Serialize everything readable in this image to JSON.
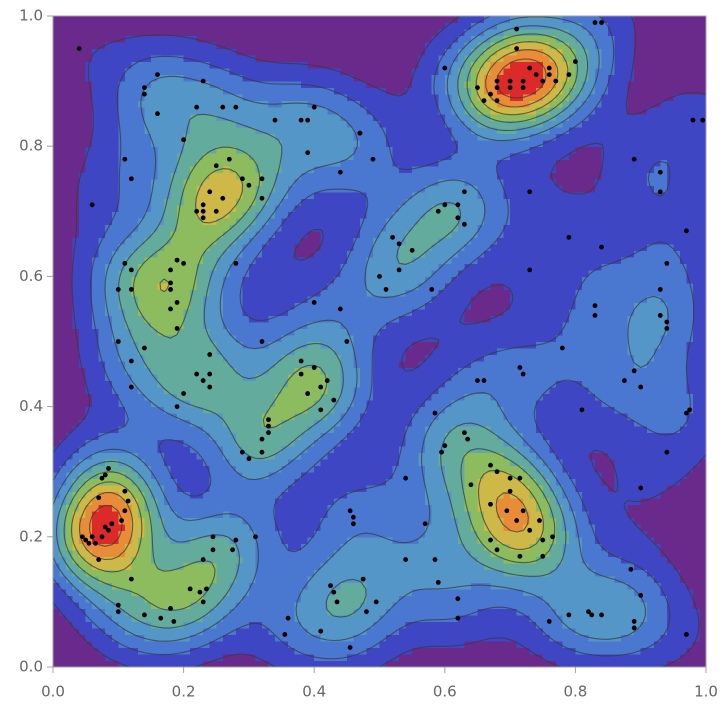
{
  "chart_data": {
    "type": "density",
    "xlim": [
      0,
      1
    ],
    "ylim": [
      0,
      1
    ],
    "xticks": [
      {
        "value": 0,
        "label": "0.0"
      },
      {
        "value": 0.2,
        "label": "0.2"
      },
      {
        "value": 0.4,
        "label": "0.4"
      },
      {
        "value": 0.6,
        "label": "0.6"
      },
      {
        "value": 0.8,
        "label": "0.8"
      },
      {
        "value": 1,
        "label": "1.0"
      }
    ],
    "yticks": [
      {
        "value": 0,
        "label": "0.0"
      },
      {
        "value": 0.2,
        "label": "0.2"
      },
      {
        "value": 0.4,
        "label": "0.4"
      },
      {
        "value": 0.6,
        "label": "0.6"
      },
      {
        "value": 0.8,
        "label": "0.8"
      },
      {
        "value": 1,
        "label": "1.0"
      }
    ],
    "colors": [
      "#6a2a8c",
      "#3f46c4",
      "#4a78d0",
      "#5596c8",
      "#63ab9c",
      "#8cbc5e",
      "#cdb848",
      "#e88c38",
      "#dc2a2a"
    ],
    "point_color": "#000000",
    "x": [
      0.04,
      0.06,
      0.11,
      0.12,
      0.14,
      0.14,
      0.16,
      0.16,
      0.23,
      0.1,
      0.11,
      0.12,
      0.12,
      0.1,
      0.12,
      0.14,
      0.12,
      0.18,
      0.18,
      0.18,
      0.18,
      0.19,
      0.19,
      0.19,
      0.2,
      0.2,
      0.22,
      0.26,
      0.28,
      0.34,
      0.38,
      0.39,
      0.4,
      0.39,
      0.27,
      0.25,
      0.29,
      0.3,
      0.32,
      0.32,
      0.26,
      0.25,
      0.23,
      0.23,
      0.24,
      0.22,
      0.23,
      0.28,
      0.24,
      0.22,
      0.23,
      0.24,
      0.24,
      0.2,
      0.19,
      0.38,
      0.38,
      0.39,
      0.4,
      0.42,
      0.41,
      0.43,
      0.41,
      0.33,
      0.32,
      0.33,
      0.33,
      0.29,
      0.3,
      0.32,
      0.44,
      0.47,
      0.47,
      0.49,
      0.44,
      0.45,
      0.4,
      0.52,
      0.53,
      0.55,
      0.53,
      0.5,
      0.51,
      0.58,
      0.59,
      0.6,
      0.62,
      0.62,
      0.63,
      0.63,
      0.6,
      0.65,
      0.66,
      0.67,
      0.68,
      0.68,
      0.68,
      0.7,
      0.7,
      0.71,
      0.72,
      0.72,
      0.73,
      0.74,
      0.75,
      0.76,
      0.76,
      0.77,
      0.79,
      0.8,
      0.71,
      0.83,
      0.84,
      0.89,
      0.93,
      0.93,
      0.98,
      0.995,
      0.97,
      0.94,
      0.93,
      0.94,
      0.94,
      0.93,
      0.83,
      0.83,
      0.78,
      0.73,
      0.79,
      0.84,
      0.73,
      0.72,
      0.715,
      0.65,
      0.66,
      0.585,
      0.6,
      0.595,
      0.63,
      0.635,
      0.64,
      0.67,
      0.68,
      0.7,
      0.715,
      0.7,
      0.695,
      0.67,
      0.72,
      0.71,
      0.73,
      0.745,
      0.75,
      0.765,
      0.715,
      0.67,
      0.68,
      0.75,
      0.82,
      0.825,
      0.84,
      0.81,
      0.875,
      0.89,
      0.9,
      0.97,
      0.975,
      0.94,
      0.9,
      0.885,
      0.9,
      0.89,
      0.89,
      0.97,
      0.79,
      0.76,
      0.62,
      0.57,
      0.585,
      0.62,
      0.59,
      0.54,
      0.54,
      0.455,
      0.46,
      0.46,
      0.425,
      0.43,
      0.435,
      0.475,
      0.495,
      0.48,
      0.455,
      0.41,
      0.36,
      0.355,
      0.31,
      0.28,
      0.275,
      0.245,
      0.245,
      0.23,
      0.235,
      0.225,
      0.21,
      0.23,
      0.18,
      0.185,
      0.165,
      0.14,
      0.12,
      0.1,
      0.1,
      0.09,
      0.085,
      0.075,
      0.06,
      0.065,
      0.05,
      0.045,
      0.055,
      0.07,
      0.085,
      0.08,
      0.075,
      0.11,
      0.115,
      0.11,
      0.105,
      0.08,
      0.07,
      0.32
    ],
    "y": [
      0.95,
      0.71,
      0.78,
      0.75,
      0.89,
      0.88,
      0.91,
      0.85,
      0.9,
      0.58,
      0.62,
      0.61,
      0.58,
      0.5,
      0.47,
      0.49,
      0.43,
      0.59,
      0.61,
      0.58,
      0.55,
      0.56,
      0.52,
      0.625,
      0.62,
      0.81,
      0.86,
      0.86,
      0.86,
      0.84,
      0.84,
      0.84,
      0.86,
      0.79,
      0.78,
      0.77,
      0.75,
      0.74,
      0.75,
      0.72,
      0.72,
      0.7,
      0.7,
      0.71,
      0.73,
      0.7,
      0.69,
      0.62,
      0.48,
      0.45,
      0.44,
      0.43,
      0.45,
      0.42,
      0.4,
      0.47,
      0.45,
      0.42,
      0.46,
      0.44,
      0.43,
      0.41,
      0.395,
      0.38,
      0.35,
      0.37,
      0.36,
      0.33,
      0.32,
      0.33,
      0.76,
      0.82,
      0.82,
      0.78,
      0.55,
      0.5,
      0.56,
      0.66,
      0.65,
      0.64,
      0.61,
      0.6,
      0.58,
      0.58,
      0.7,
      0.71,
      0.71,
      0.69,
      0.73,
      0.68,
      0.92,
      0.89,
      0.87,
      0.88,
      0.89,
      0.87,
      0.9,
      0.9,
      0.89,
      0.95,
      0.9,
      0.89,
      0.92,
      0.91,
      0.9,
      0.91,
      0.92,
      0.9,
      0.91,
      0.93,
      0.98,
      0.99,
      0.99,
      0.78,
      0.76,
      0.73,
      0.84,
      0.84,
      0.67,
      0.62,
      0.58,
      0.53,
      0.52,
      0.54,
      0.555,
      0.54,
      0.49,
      0.61,
      0.66,
      0.645,
      0.73,
      0.45,
      0.46,
      0.44,
      0.44,
      0.39,
      0.34,
      0.33,
      0.36,
      0.35,
      0.28,
      0.31,
      0.3,
      0.29,
      0.29,
      0.27,
      0.24,
      0.25,
      0.24,
      0.225,
      0.21,
      0.225,
      0.195,
      0.2,
      0.17,
      0.195,
      0.18,
      0.17,
      0.085,
      0.08,
      0.08,
      0.395,
      0.44,
      0.455,
      0.43,
      0.39,
      0.395,
      0.33,
      0.275,
      0.15,
      0.11,
      0.06,
      0.07,
      0.05,
      0.08,
      0.07,
      0.075,
      0.22,
      0.165,
      0.105,
      0.13,
      0.29,
      0.165,
      0.24,
      0.23,
      0.22,
      0.125,
      0.115,
      0.1,
      0.135,
      0.1,
      0.085,
      0.03,
      0.055,
      0.075,
      0.05,
      0.2,
      0.195,
      0.18,
      0.2,
      0.18,
      0.165,
      0.12,
      0.115,
      0.12,
      0.1,
      0.09,
      0.07,
      0.075,
      0.08,
      0.135,
      0.095,
      0.085,
      0.22,
      0.21,
      0.2,
      0.2,
      0.19,
      0.195,
      0.2,
      0.19,
      0.26,
      0.305,
      0.295,
      0.29,
      0.27,
      0.255,
      0.24,
      0.225,
      0.215,
      0.165,
      0.5
    ]
  }
}
